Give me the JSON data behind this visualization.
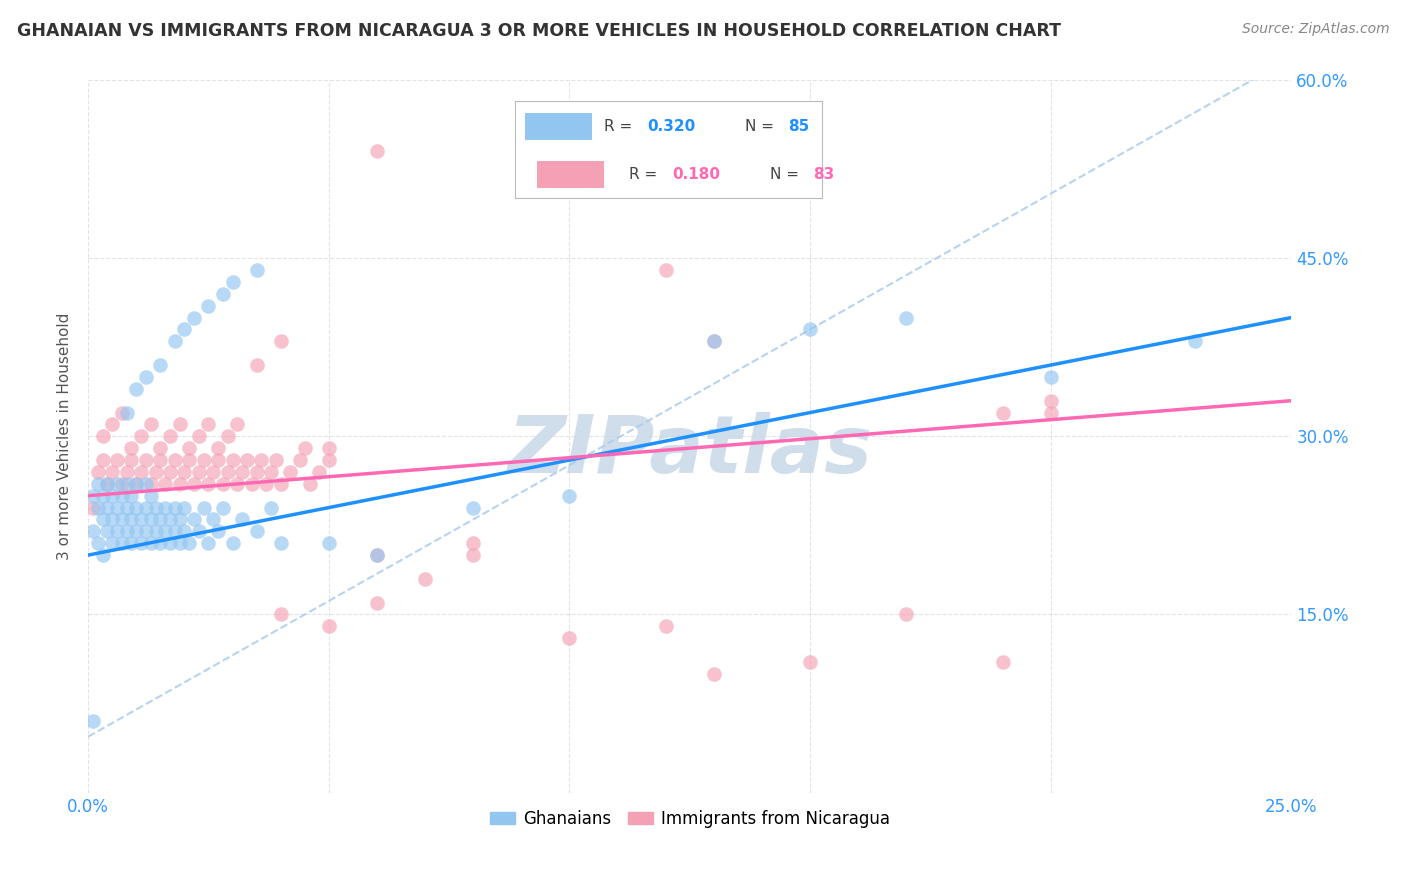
{
  "title": "GHANAIAN VS IMMIGRANTS FROM NICARAGUA 3 OR MORE VEHICLES IN HOUSEHOLD CORRELATION CHART",
  "source": "Source: ZipAtlas.com",
  "ylabel": "3 or more Vehicles in Household",
  "x_min": 0.0,
  "x_max": 0.25,
  "y_min": 0.0,
  "y_max": 0.6,
  "ghanaian_color": "#92C5F0",
  "nicaragua_color": "#F4A0B5",
  "trendline_ghanaian_color": "#1E90FF",
  "trendline_nicaragua_color": "#FF69B4",
  "dashed_line_color": "#AACCEE",
  "watermark": "ZIPatlas",
  "watermark_color": "#C8D8E8",
  "ghanaian_x": [
    0.001,
    0.001,
    0.002,
    0.002,
    0.002,
    0.003,
    0.003,
    0.003,
    0.004,
    0.004,
    0.004,
    0.005,
    0.005,
    0.005,
    0.006,
    0.006,
    0.006,
    0.007,
    0.007,
    0.007,
    0.008,
    0.008,
    0.008,
    0.009,
    0.009,
    0.009,
    0.01,
    0.01,
    0.01,
    0.011,
    0.011,
    0.012,
    0.012,
    0.012,
    0.013,
    0.013,
    0.013,
    0.014,
    0.014,
    0.015,
    0.015,
    0.016,
    0.016,
    0.017,
    0.017,
    0.018,
    0.018,
    0.019,
    0.019,
    0.02,
    0.02,
    0.021,
    0.022,
    0.023,
    0.024,
    0.025,
    0.026,
    0.027,
    0.028,
    0.03,
    0.032,
    0.035,
    0.038,
    0.008,
    0.01,
    0.012,
    0.015,
    0.018,
    0.02,
    0.022,
    0.025,
    0.028,
    0.03,
    0.035,
    0.04,
    0.05,
    0.06,
    0.08,
    0.1,
    0.13,
    0.15,
    0.17,
    0.2,
    0.23,
    0.001
  ],
  "ghanaian_y": [
    0.22,
    0.25,
    0.21,
    0.24,
    0.26,
    0.2,
    0.23,
    0.25,
    0.22,
    0.24,
    0.26,
    0.21,
    0.23,
    0.25,
    0.22,
    0.24,
    0.26,
    0.21,
    0.23,
    0.25,
    0.22,
    0.24,
    0.26,
    0.21,
    0.23,
    0.25,
    0.22,
    0.24,
    0.26,
    0.21,
    0.23,
    0.22,
    0.24,
    0.26,
    0.21,
    0.23,
    0.25,
    0.22,
    0.24,
    0.21,
    0.23,
    0.22,
    0.24,
    0.21,
    0.23,
    0.22,
    0.24,
    0.21,
    0.23,
    0.22,
    0.24,
    0.21,
    0.23,
    0.22,
    0.24,
    0.21,
    0.23,
    0.22,
    0.24,
    0.21,
    0.23,
    0.22,
    0.24,
    0.32,
    0.34,
    0.35,
    0.36,
    0.38,
    0.39,
    0.4,
    0.41,
    0.42,
    0.43,
    0.44,
    0.21,
    0.21,
    0.2,
    0.24,
    0.25,
    0.38,
    0.39,
    0.4,
    0.35,
    0.38,
    0.06
  ],
  "nicaragua_x": [
    0.001,
    0.002,
    0.003,
    0.004,
    0.005,
    0.006,
    0.007,
    0.008,
    0.009,
    0.01,
    0.011,
    0.012,
    0.013,
    0.014,
    0.015,
    0.016,
    0.017,
    0.018,
    0.019,
    0.02,
    0.021,
    0.022,
    0.023,
    0.024,
    0.025,
    0.026,
    0.027,
    0.028,
    0.029,
    0.03,
    0.031,
    0.032,
    0.033,
    0.034,
    0.035,
    0.036,
    0.037,
    0.038,
    0.039,
    0.04,
    0.042,
    0.044,
    0.046,
    0.048,
    0.05,
    0.003,
    0.005,
    0.007,
    0.009,
    0.011,
    0.013,
    0.015,
    0.017,
    0.019,
    0.021,
    0.023,
    0.025,
    0.027,
    0.029,
    0.031,
    0.035,
    0.04,
    0.045,
    0.05,
    0.06,
    0.08,
    0.1,
    0.13,
    0.15,
    0.17,
    0.19,
    0.2,
    0.06,
    0.04,
    0.12,
    0.13,
    0.05,
    0.06,
    0.07,
    0.08,
    0.12,
    0.19,
    0.2
  ],
  "nicaragua_y": [
    0.24,
    0.27,
    0.28,
    0.26,
    0.27,
    0.28,
    0.26,
    0.27,
    0.28,
    0.26,
    0.27,
    0.28,
    0.26,
    0.27,
    0.28,
    0.26,
    0.27,
    0.28,
    0.26,
    0.27,
    0.28,
    0.26,
    0.27,
    0.28,
    0.26,
    0.27,
    0.28,
    0.26,
    0.27,
    0.28,
    0.26,
    0.27,
    0.28,
    0.26,
    0.27,
    0.28,
    0.26,
    0.27,
    0.28,
    0.26,
    0.27,
    0.28,
    0.26,
    0.27,
    0.28,
    0.3,
    0.31,
    0.32,
    0.29,
    0.3,
    0.31,
    0.29,
    0.3,
    0.31,
    0.29,
    0.3,
    0.31,
    0.29,
    0.3,
    0.31,
    0.36,
    0.38,
    0.29,
    0.29,
    0.2,
    0.21,
    0.13,
    0.1,
    0.11,
    0.15,
    0.11,
    0.32,
    0.54,
    0.15,
    0.44,
    0.38,
    0.14,
    0.16,
    0.18,
    0.2,
    0.14,
    0.32,
    0.33
  ]
}
